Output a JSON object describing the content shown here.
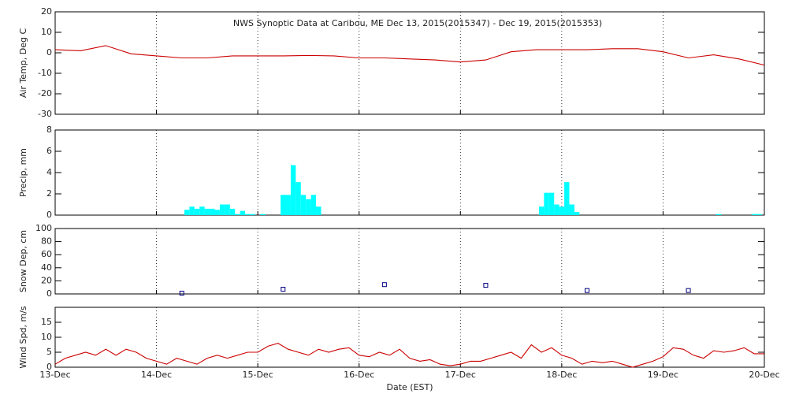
{
  "chart_data": [
    {
      "type": "line",
      "title": "NWS Synoptic Data at Caribou, ME    Dec 13, 2015(2015347) - Dec 19, 2015(2015353)",
      "y_label": "Air Temp, Deg C",
      "ylim": [
        -30,
        20
      ],
      "yticks": [
        -30,
        -20,
        -10,
        0,
        10,
        20
      ],
      "color": "#cc0000",
      "x": [
        0,
        0.25,
        0.5,
        0.75,
        1,
        1.25,
        1.5,
        1.75,
        2,
        2.25,
        2.5,
        2.75,
        3,
        3.25,
        3.5,
        3.75,
        4,
        4.25,
        4.5,
        4.75,
        5,
        5.25,
        5.5,
        5.75,
        6,
        6.25,
        6.5,
        6.75,
        7
      ],
      "values": [
        1.5,
        1,
        3.5,
        -0.5,
        -1.5,
        -2.5,
        -2.5,
        -1.5,
        -1.5,
        -1.5,
        -1.3,
        -1.5,
        -2.5,
        -2.5,
        -3,
        -3.5,
        -4.5,
        -3.5,
        0.5,
        1.5,
        1.5,
        1.5,
        2,
        2,
        0.5,
        -2.5,
        -1,
        -3,
        -6
      ]
    },
    {
      "type": "bar",
      "y_label": "Precip, mm",
      "ylim": [
        0,
        8
      ],
      "yticks": [
        0,
        2,
        4,
        6,
        8
      ],
      "color": "#00ffff",
      "x": [
        1.3,
        1.35,
        1.4,
        1.45,
        1.5,
        1.55,
        1.6,
        1.65,
        1.7,
        1.75,
        1.8,
        1.85,
        1.9,
        1.95,
        2.05,
        2.25,
        2.3,
        2.35,
        2.4,
        2.45,
        2.5,
        2.55,
        2.6,
        4.8,
        4.85,
        4.9,
        4.95,
        5.0,
        5.05,
        5.1,
        5.15,
        6.55,
        6.9,
        6.95
      ],
      "values": [
        0.5,
        0.8,
        0.6,
        0.8,
        0.6,
        0.6,
        0.5,
        1.0,
        1.0,
        0.6,
        0.1,
        0.4,
        0.1,
        0.1,
        0.1,
        1.9,
        1.9,
        4.7,
        3.1,
        1.9,
        1.5,
        1.9,
        0.8,
        0.8,
        2.1,
        2.1,
        1.0,
        0.8,
        3.1,
        1.0,
        0.3,
        0.1,
        0.1,
        0.1
      ]
    },
    {
      "type": "scatter",
      "y_label": "Snow Dep, cm",
      "ylim": [
        0,
        100
      ],
      "yticks": [
        0,
        20,
        40,
        60,
        80,
        100
      ],
      "color": "#000080",
      "x": [
        1.25,
        2.25,
        3.25,
        4.25,
        5.25,
        6.25
      ],
      "values": [
        0,
        6,
        13,
        12,
        4,
        4
      ]
    },
    {
      "type": "line",
      "y_label": "Wind Spd, m/s",
      "x_label": "Date (EST)",
      "ylim": [
        0,
        20
      ],
      "yticks": [
        0,
        5,
        10,
        15
      ],
      "color": "#cc0000",
      "xlim": [
        0,
        7
      ],
      "xticks": [
        {
          "value": 0,
          "label": "13-Dec"
        },
        {
          "value": 1,
          "label": "14-Dec"
        },
        {
          "value": 2,
          "label": "15-Dec"
        },
        {
          "value": 3,
          "label": "16-Dec"
        },
        {
          "value": 4,
          "label": "17-Dec"
        },
        {
          "value": 5,
          "label": "18-Dec"
        },
        {
          "value": 6,
          "label": "19-Dec"
        },
        {
          "value": 7,
          "label": "20-Dec"
        }
      ],
      "x": [
        0,
        0.1,
        0.2,
        0.3,
        0.4,
        0.5,
        0.6,
        0.7,
        0.8,
        0.9,
        1,
        1.1,
        1.2,
        1.3,
        1.4,
        1.5,
        1.6,
        1.7,
        1.8,
        1.9,
        2,
        2.1,
        2.2,
        2.3,
        2.4,
        2.5,
        2.6,
        2.7,
        2.8,
        2.9,
        3,
        3.1,
        3.2,
        3.3,
        3.4,
        3.5,
        3.6,
        3.7,
        3.8,
        3.9,
        4,
        4.1,
        4.2,
        4.3,
        4.4,
        4.5,
        4.6,
        4.7,
        4.8,
        4.9,
        5,
        5.1,
        5.2,
        5.3,
        5.4,
        5.5,
        5.6,
        5.7,
        5.8,
        5.9,
        6,
        6.1,
        6.2,
        6.3,
        6.4,
        6.5,
        6.6,
        6.7,
        6.8,
        6.9,
        7
      ],
      "values": [
        1,
        3,
        4,
        5,
        4,
        6,
        4,
        6,
        5,
        3,
        2,
        1,
        3,
        2,
        1,
        3,
        4,
        3,
        4,
        5,
        5,
        7,
        8,
        6,
        5,
        4,
        6,
        5,
        6,
        6.5,
        4,
        3.5,
        5,
        4,
        6,
        3,
        2,
        2.5,
        1,
        0.5,
        1,
        2,
        2,
        3,
        4,
        5,
        3,
        7.5,
        5,
        6.5,
        4,
        3,
        1,
        2,
        1.5,
        2,
        1,
        0,
        1,
        2,
        3.5,
        6.5,
        6,
        4,
        3,
        5.5,
        5,
        5.5,
        6.5,
        4.5,
        4.5
      ]
    }
  ]
}
